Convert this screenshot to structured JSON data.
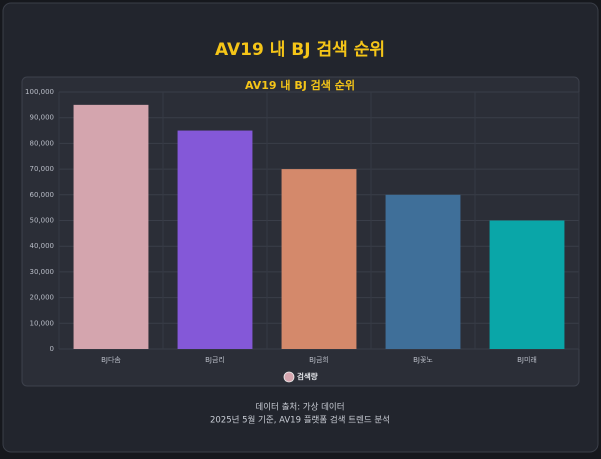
{
  "chart_data": {
    "type": "bar",
    "page_title": "AV19 내 BJ 검색 순위",
    "title": "AV19 내 BJ 검색 순위",
    "categories": [
      "BJ다솜",
      "BJ금리",
      "BJ금희",
      "BJ꽃노",
      "BJ미래"
    ],
    "series": [
      {
        "name": "검색량",
        "color": "#d4a5ae",
        "colors": [
          "#d4a5ae",
          "#8458d8",
          "#d4896b",
          "#3f6f99",
          "#0aa6a8"
        ],
        "values": [
          95000,
          85000,
          70000,
          60000,
          50000
        ]
      }
    ],
    "ylim": [
      0,
      100000
    ],
    "yticks": [
      0,
      {
        "value": 10000,
        "label": "10,000"
      },
      {
        "value": 20000,
        "label": "20,000"
      },
      {
        "value": 30000,
        "label": "30,000"
      },
      {
        "value": 40000,
        "label": "40,000"
      },
      {
        "value": 50000,
        "label": "50,000"
      },
      {
        "value": 60000,
        "label": "60,000"
      },
      {
        "value": 70000,
        "label": "70,000"
      },
      {
        "value": 80000,
        "label": "80,000"
      },
      {
        "value": 90000,
        "label": "90,000"
      },
      {
        "value": 100000,
        "label": "100,000"
      }
    ],
    "grid": true,
    "footer": [
      "데이터 출처: 가상 데이터",
      "2025년 5월 기준, AV19 플랫폼 검색 트렌드 분석"
    ]
  }
}
